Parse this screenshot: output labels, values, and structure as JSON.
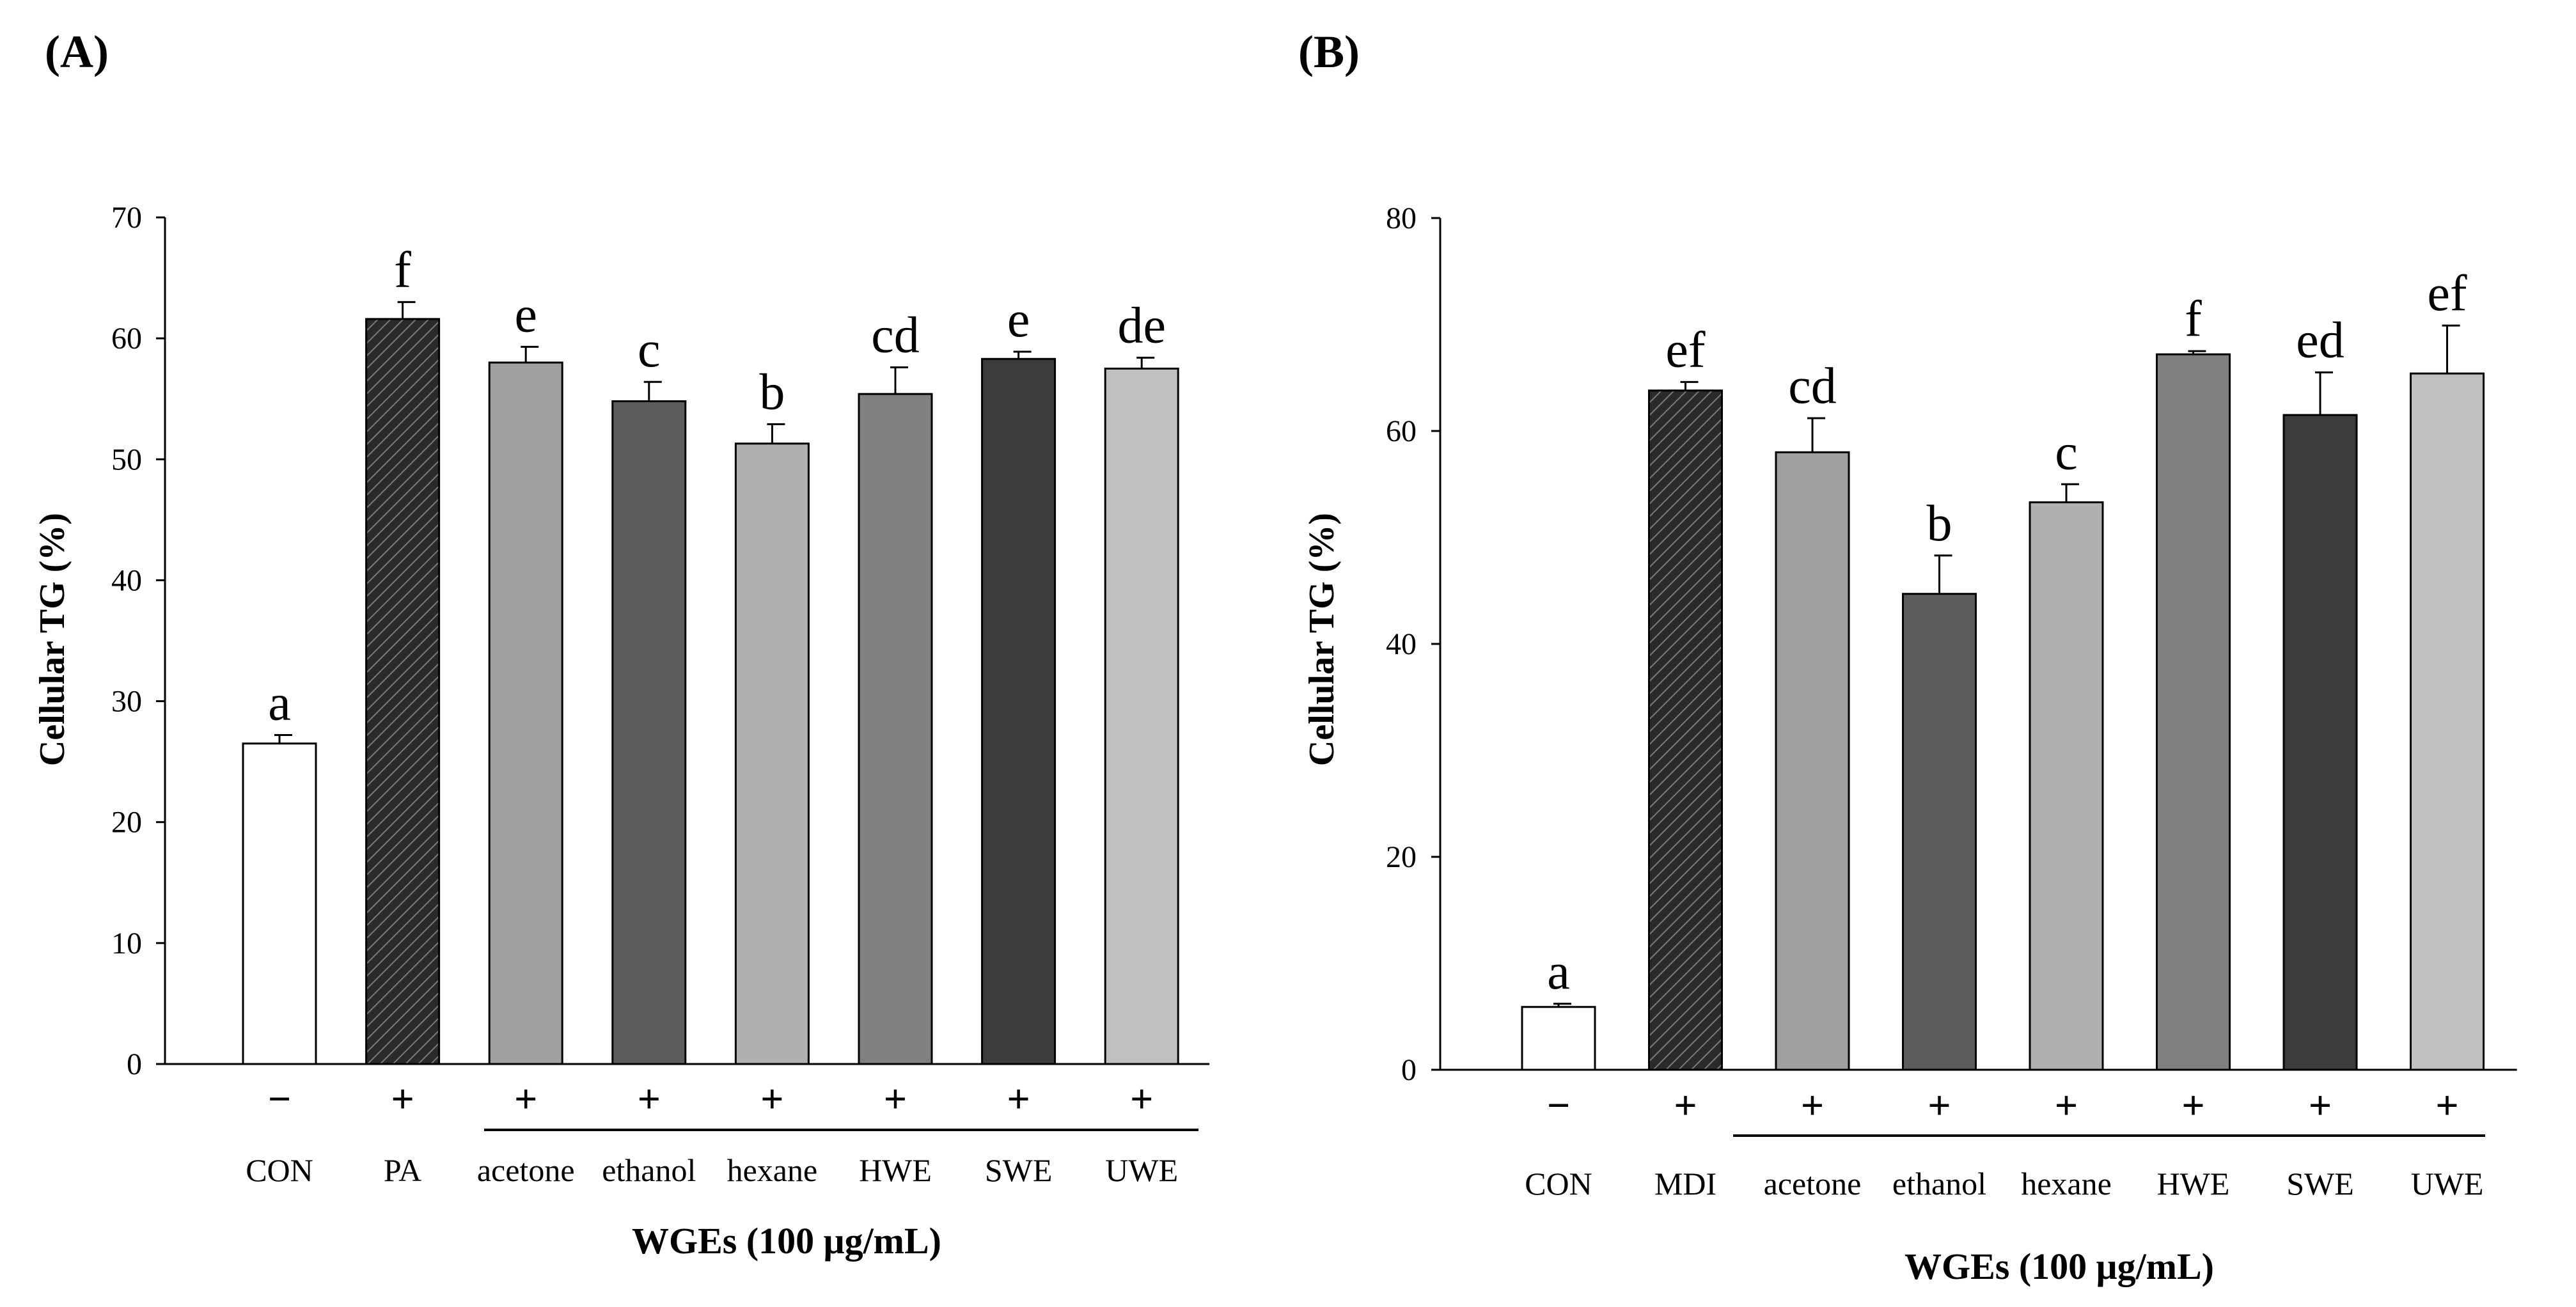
{
  "chart_data": [
    {
      "type": "bar",
      "panel_label": "(A)",
      "ylabel": "Cellular TG (%)",
      "ylim": [
        0,
        70
      ],
      "yticks": [
        0,
        10,
        20,
        30,
        40,
        50,
        60,
        70
      ],
      "categories": [
        "CON",
        "PA",
        "acetone",
        "ethanol",
        "hexane",
        "HWE",
        "SWE",
        "UWE"
      ],
      "values": [
        26.5,
        61.6,
        58.0,
        54.8,
        51.3,
        55.4,
        58.3,
        57.5
      ],
      "errors": [
        0.7,
        1.4,
        1.3,
        1.6,
        1.6,
        2.2,
        0.6,
        0.9
      ],
      "signs": [
        "−",
        "+",
        "+",
        "+",
        "+",
        "+",
        "+",
        "+"
      ],
      "letters": [
        "a",
        "f",
        "e",
        "c",
        "b",
        "cd",
        "e",
        "de"
      ],
      "fills": [
        "#ffffff",
        "hatch",
        "#a0a0a0",
        "#5c5c5c",
        "#b0b0b0",
        "#808080",
        "#3c3c3c",
        "#c0c0c0"
      ],
      "xlabel": "WGEs  (100 μg/mL)"
    },
    {
      "type": "bar",
      "panel_label": "(B)",
      "ylabel": "Cellular TG (%)",
      "ylim": [
        0,
        80
      ],
      "yticks": [
        0,
        20,
        40,
        60,
        80
      ],
      "categories": [
        "CON",
        "MDI",
        "acetone",
        "ethanol",
        "hexane",
        "HWE",
        "SWE",
        "UWE"
      ],
      "values": [
        5.9,
        63.8,
        58.0,
        44.7,
        53.3,
        67.2,
        61.5,
        65.4
      ],
      "errors": [
        0.3,
        0.8,
        3.2,
        3.6,
        1.7,
        0.3,
        4.0,
        4.5
      ],
      "signs": [
        "−",
        "+",
        "+",
        "+",
        "+",
        "+",
        "+",
        "+"
      ],
      "letters": [
        "a",
        "ef",
        "cd",
        "b",
        "c",
        "f",
        "ed",
        "ef"
      ],
      "fills": [
        "#ffffff",
        "hatch",
        "#a0a0a0",
        "#5c5c5c",
        "#b0b0b0",
        "#808080",
        "#3c3c3c",
        "#c0c0c0"
      ],
      "xlabel": "WGEs  (100 μg/mL)"
    }
  ]
}
